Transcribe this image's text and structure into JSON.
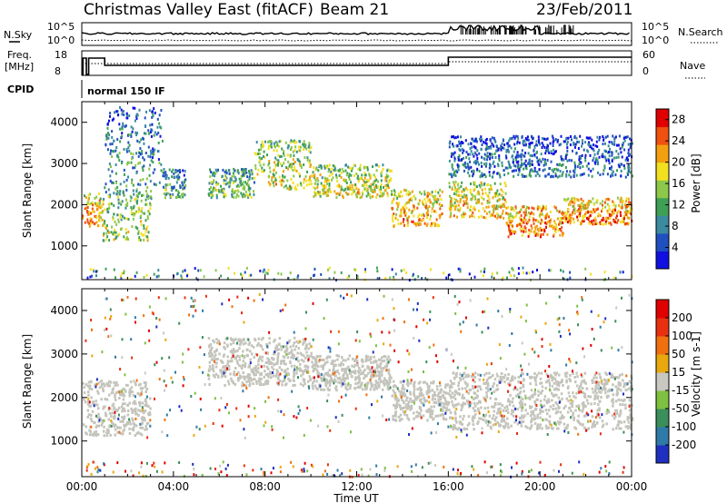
{
  "header": {
    "station": "Christmas Valley East (fitACF)",
    "beam": "Beam 21",
    "date": "23/Feb/2011"
  },
  "status_panel": {
    "nsky_label": "N.Sky",
    "nsearch_label": "N.Search",
    "freq_label_1": "Freq.",
    "freq_label_2": "[MHz]",
    "nave_label": "Nave",
    "cpid_label": "CPID",
    "cpid_value": "normal 150 IF",
    "left_ticks_top": [
      "10^5",
      "10^0"
    ],
    "right_ticks_top": [
      "10^5",
      "10^0"
    ],
    "left_ticks_freq": [
      "18",
      "8"
    ],
    "right_ticks_nave": [
      "60",
      "0"
    ]
  },
  "colors": {
    "power_scale": [
      "#1010e0",
      "#2050c0",
      "#3a8aa0",
      "#3da055",
      "#8ec84a",
      "#f2e020",
      "#f2a010",
      "#f05010",
      "#e00000"
    ],
    "velocity_scale": [
      "#1f30c0",
      "#2f7aa8",
      "#3a8f5a",
      "#7ec040",
      "#c8c8c0",
      "#e9a80e",
      "#f07010",
      "#e83010",
      "#e00000"
    ],
    "groundscatter": "#c4c4bc"
  },
  "chart_data": [
    {
      "type": "heatmap",
      "name": "power",
      "ylabel": "Slant Range [km]",
      "xlabel": "",
      "xlim": [
        0,
        24
      ],
      "ylim": [
        180,
        4500
      ],
      "x_ticks": [
        "00:00",
        "04:00",
        "08:00",
        "12:00",
        "16:00",
        "20:00",
        "00:00"
      ],
      "y_ticks": [
        1000,
        2000,
        3000,
        4000
      ],
      "colorbar": {
        "label": "Power [dB]",
        "ticks": [
          4,
          8,
          12,
          16,
          20,
          24,
          28
        ],
        "range": [
          0,
          30
        ]
      },
      "bands": [
        {
          "t": [
            0.0,
            0.9
          ],
          "range": [
            1500,
            2300
          ],
          "power": 22
        },
        {
          "t": [
            0.9,
            3.0
          ],
          "range": [
            1150,
            2500
          ],
          "power": 16
        },
        {
          "t": [
            1.0,
            3.5
          ],
          "range": [
            2500,
            4400
          ],
          "power": 10
        },
        {
          "t": [
            3.5,
            4.5
          ],
          "range": [
            2200,
            2900
          ],
          "power": 12
        },
        {
          "t": [
            5.5,
            7.5
          ],
          "range": [
            2200,
            2900
          ],
          "power": 14
        },
        {
          "t": [
            7.5,
            10.0
          ],
          "range": [
            2400,
            3600
          ],
          "power": 18
        },
        {
          "t": [
            10.0,
            13.5
          ],
          "range": [
            2200,
            3000
          ],
          "power": 18
        },
        {
          "t": [
            13.5,
            15.7
          ],
          "range": [
            1500,
            2400
          ],
          "power": 22
        },
        {
          "t": [
            16.0,
            18.5
          ],
          "range": [
            1700,
            2600
          ],
          "power": 20
        },
        {
          "t": [
            18.5,
            21.0
          ],
          "range": [
            1250,
            2000
          ],
          "power": 24
        },
        {
          "t": [
            21.0,
            24.0
          ],
          "range": [
            1550,
            2200
          ],
          "power": 24
        },
        {
          "t": [
            16.0,
            24.0
          ],
          "range": [
            2700,
            3700
          ],
          "power": 8
        }
      ]
    },
    {
      "type": "heatmap",
      "name": "velocity",
      "ylabel": "Slant Range [km]",
      "xlabel": "Time UT",
      "xlim": [
        0,
        24
      ],
      "ylim": [
        180,
        4500
      ],
      "x_ticks": [
        "00:00",
        "04:00",
        "08:00",
        "12:00",
        "16:00",
        "20:00",
        "00:00"
      ],
      "y_ticks": [
        1000,
        2000,
        3000,
        4000
      ],
      "colorbar": {
        "label": "Velocity [m s-1]",
        "ticks": [
          200,
          100,
          50,
          15,
          -15,
          -50,
          -100,
          -200
        ]
      },
      "groundscatter_bands": [
        {
          "t": [
            0.0,
            3.0
          ],
          "range": [
            1150,
            2400
          ]
        },
        {
          "t": [
            5.5,
            10.0
          ],
          "range": [
            2300,
            3400
          ]
        },
        {
          "t": [
            10.0,
            13.5
          ],
          "range": [
            2200,
            3000
          ]
        },
        {
          "t": [
            13.5,
            16.0
          ],
          "range": [
            1500,
            2400
          ]
        },
        {
          "t": [
            16.0,
            24.0
          ],
          "range": [
            1300,
            2600
          ]
        }
      ]
    }
  ]
}
